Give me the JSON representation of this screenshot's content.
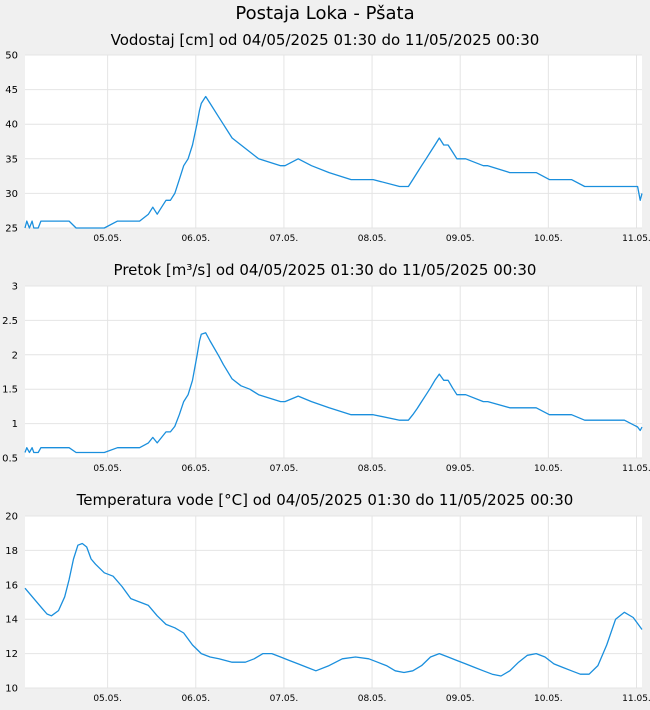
{
  "page_title": "Postaja Loka - Pšata",
  "colors": {
    "line": "#1a8fdd",
    "grid": "#e4e4e4",
    "plot_bg": "#ffffff",
    "page_bg": "#f0f0f0"
  },
  "chart_data": [
    {
      "type": "line",
      "title": "Vodostaj [cm] od 04/05/2025 01:30 do 11/05/2025 00:30",
      "x_ticks": [
        "05.05.",
        "06.05.",
        "07.05.",
        "08.05.",
        "09.05.",
        "10.05.",
        "11.05."
      ],
      "x_range_days": [
        0,
        7
      ],
      "ylim": [
        25,
        50
      ],
      "y_ticks": [
        25,
        30,
        35,
        40,
        45,
        50
      ],
      "y_tick_labels": [
        "25",
        "30",
        "35",
        "40",
        "45",
        "50"
      ],
      "grid": true,
      "series": [
        {
          "x": [
            0,
            0.02,
            0.05,
            0.08,
            0.1,
            0.12,
            0.15,
            0.18,
            0.22,
            0.5,
            0.58,
            0.6,
            0.9,
            1.05,
            1.1,
            1.3,
            1.4,
            1.45,
            1.5,
            1.55,
            1.6,
            1.65,
            1.7,
            1.75,
            1.8,
            1.85,
            1.9,
            1.95,
            1.98,
            2.0,
            2.05,
            2.1,
            2.2,
            2.25,
            2.35,
            2.45,
            2.55,
            2.65,
            2.9,
            2.95,
            3.1,
            3.25,
            3.45,
            3.7,
            3.95,
            4.25,
            4.3,
            4.35,
            4.4,
            4.45,
            4.5,
            4.55,
            4.6,
            4.65,
            4.7,
            4.75,
            4.8,
            4.85,
            4.9,
            5.0,
            5.2,
            5.25,
            5.5,
            5.8,
            5.95,
            6.2,
            6.35,
            6.5,
            6.8,
            6.95,
            6.98,
            7.0
          ],
          "y": [
            25,
            26,
            25,
            26,
            25,
            25,
            25,
            26,
            26,
            26,
            25,
            25,
            25,
            26,
            26,
            26,
            27,
            28,
            27,
            28,
            29,
            29,
            30,
            32,
            34,
            35,
            37,
            40,
            42,
            43,
            44,
            43,
            41,
            40,
            38,
            37,
            36,
            35,
            34,
            34,
            35,
            34,
            33,
            32,
            32,
            31,
            31,
            31,
            32,
            33,
            34,
            35,
            36,
            37,
            38,
            37,
            37,
            36,
            35,
            35,
            34,
            34,
            33,
            33,
            32,
            32,
            31,
            31,
            31,
            31,
            29,
            30
          ]
        }
      ]
    },
    {
      "type": "line",
      "title": "Pretok [m³/s] od 04/05/2025 01:30 do 11/05/2025 00:30",
      "x_ticks": [
        "05.05.",
        "06.05.",
        "07.05.",
        "08.05.",
        "09.05.",
        "10.05.",
        "11.05."
      ],
      "x_range_days": [
        0,
        7
      ],
      "ylim": [
        0.5,
        3
      ],
      "y_ticks": [
        0.5,
        1,
        1.5,
        2,
        2.5,
        3
      ],
      "y_tick_labels": [
        "0.5",
        "1",
        "1.5",
        "2",
        "2.5",
        "3"
      ],
      "grid": true,
      "series": [
        {
          "x": [
            0,
            0.02,
            0.05,
            0.08,
            0.1,
            0.12,
            0.15,
            0.18,
            0.22,
            0.5,
            0.58,
            0.6,
            0.9,
            1.05,
            1.1,
            1.3,
            1.4,
            1.45,
            1.5,
            1.55,
            1.6,
            1.65,
            1.7,
            1.75,
            1.8,
            1.85,
            1.9,
            1.95,
            1.98,
            2.0,
            2.05,
            2.1,
            2.2,
            2.25,
            2.35,
            2.45,
            2.55,
            2.65,
            2.9,
            2.95,
            3.1,
            3.25,
            3.45,
            3.7,
            3.95,
            4.25,
            4.3,
            4.35,
            4.4,
            4.45,
            4.5,
            4.55,
            4.6,
            4.65,
            4.7,
            4.75,
            4.8,
            4.85,
            4.9,
            5.0,
            5.2,
            5.25,
            5.5,
            5.8,
            5.95,
            6.2,
            6.35,
            6.5,
            6.8,
            6.95,
            6.98,
            7.0
          ],
          "y": [
            0.58,
            0.65,
            0.58,
            0.65,
            0.58,
            0.58,
            0.58,
            0.65,
            0.65,
            0.65,
            0.58,
            0.58,
            0.58,
            0.65,
            0.65,
            0.65,
            0.72,
            0.8,
            0.72,
            0.8,
            0.88,
            0.88,
            0.96,
            1.13,
            1.32,
            1.42,
            1.63,
            1.98,
            2.2,
            2.3,
            2.32,
            2.2,
            1.98,
            1.86,
            1.65,
            1.55,
            1.5,
            1.42,
            1.32,
            1.32,
            1.4,
            1.32,
            1.23,
            1.13,
            1.13,
            1.05,
            1.05,
            1.05,
            1.13,
            1.22,
            1.32,
            1.42,
            1.52,
            1.63,
            1.72,
            1.63,
            1.63,
            1.52,
            1.42,
            1.42,
            1.32,
            1.32,
            1.23,
            1.23,
            1.13,
            1.13,
            1.05,
            1.05,
            1.05,
            0.95,
            0.9,
            0.95
          ]
        }
      ]
    },
    {
      "type": "line",
      "title": "Temperatura vode [°C] od 04/05/2025 01:30 do 11/05/2025 00:30",
      "x_ticks": [
        "05.05.",
        "06.05.",
        "07.05.",
        "08.05.",
        "09.05.",
        "10.05.",
        "11.05."
      ],
      "x_range_days": [
        0,
        7
      ],
      "ylim": [
        10,
        20
      ],
      "y_ticks": [
        10,
        12,
        14,
        16,
        18,
        20
      ],
      "y_tick_labels": [
        "10",
        "12",
        "14",
        "16",
        "18",
        "20"
      ],
      "grid": true,
      "series": [
        {
          "x": [
            0,
            0.1,
            0.2,
            0.25,
            0.3,
            0.38,
            0.45,
            0.5,
            0.55,
            0.6,
            0.65,
            0.7,
            0.75,
            0.8,
            0.9,
            1.0,
            1.1,
            1.2,
            1.3,
            1.4,
            1.5,
            1.6,
            1.7,
            1.8,
            1.9,
            2.0,
            2.1,
            2.2,
            2.35,
            2.5,
            2.6,
            2.7,
            2.8,
            2.9,
            3.0,
            3.1,
            3.2,
            3.3,
            3.45,
            3.6,
            3.75,
            3.9,
            4.0,
            4.1,
            4.2,
            4.3,
            4.4,
            4.5,
            4.6,
            4.7,
            4.8,
            4.9,
            5.0,
            5.1,
            5.2,
            5.3,
            5.4,
            5.5,
            5.6,
            5.7,
            5.8,
            5.9,
            6.0,
            6.1,
            6.2,
            6.3,
            6.4,
            6.5,
            6.6,
            6.7,
            6.8,
            6.9,
            7.0
          ],
          "y": [
            15.8,
            15.2,
            14.6,
            14.3,
            14.2,
            14.5,
            15.3,
            16.3,
            17.5,
            18.3,
            18.4,
            18.2,
            17.5,
            17.2,
            16.7,
            16.5,
            15.9,
            15.2,
            15.0,
            14.8,
            14.2,
            13.7,
            13.5,
            13.2,
            12.5,
            12.0,
            11.8,
            11.7,
            11.5,
            11.5,
            11.7,
            12.0,
            12.0,
            11.8,
            11.6,
            11.4,
            11.2,
            11.0,
            11.3,
            11.7,
            11.8,
            11.7,
            11.5,
            11.3,
            11.0,
            10.9,
            11.0,
            11.3,
            11.8,
            12.0,
            11.8,
            11.6,
            11.4,
            11.2,
            11.0,
            10.8,
            10.7,
            11.0,
            11.5,
            11.9,
            12.0,
            11.8,
            11.4,
            11.2,
            11.0,
            10.8,
            10.8,
            11.3,
            12.5,
            14.0,
            14.4,
            14.1,
            13.4
          ]
        }
      ]
    }
  ]
}
